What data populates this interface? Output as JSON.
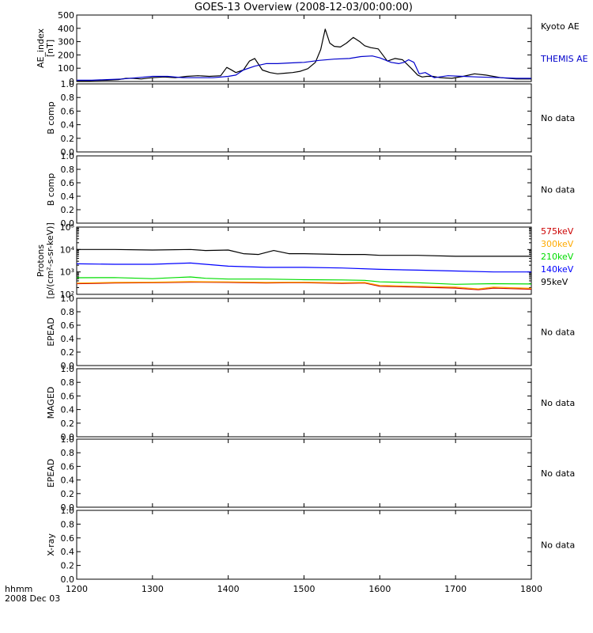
{
  "title": "GOES-13 Overview (2008-12-03/00:00:00)",
  "corner_labels": {
    "time_format": "hhmm",
    "date": "2008 Dec 03"
  },
  "no_data_text": "No data",
  "colors": {
    "kyoto_ae": "#000000",
    "themis_ae": "#0000cc",
    "p575": "#cc0000",
    "p300": "#ffaa00",
    "p210": "#00dd00",
    "p140": "#0000ff",
    "p95": "#000000"
  },
  "chart_data": [
    {
      "type": "line",
      "panel": "ae-index",
      "ylabel": "AE_index [nT]",
      "ylim": [
        0,
        520
      ],
      "yticks": [
        "0",
        "100",
        "200",
        "300",
        "400",
        "500"
      ],
      "xlim": [
        1200,
        1800
      ],
      "series": [
        {
          "name": "Kyoto AE",
          "color": "#000000",
          "x": [
            1200,
            1210,
            1225,
            1240,
            1255,
            1265,
            1275,
            1285,
            1300,
            1315,
            1330,
            1345,
            1360,
            1375,
            1390,
            1398,
            1403,
            1410,
            1420,
            1428,
            1435,
            1445,
            1455,
            1465,
            1475,
            1485,
            1495,
            1505,
            1515,
            1522,
            1528,
            1534,
            1540,
            1548,
            1556,
            1565,
            1574,
            1580,
            1588,
            1598,
            1610,
            1620,
            1630,
            1642,
            1650,
            1656,
            1662,
            1670,
            1680,
            1695,
            1710,
            1725,
            1740,
            1760,
            1780,
            1800
          ],
          "y": [
            5,
            5,
            8,
            10,
            15,
            25,
            25,
            20,
            30,
            35,
            30,
            40,
            45,
            40,
            45,
            110,
            95,
            70,
            90,
            160,
            180,
            90,
            70,
            60,
            65,
            70,
            80,
            100,
            150,
            250,
            410,
            300,
            275,
            270,
            300,
            345,
            310,
            280,
            265,
            255,
            160,
            180,
            170,
            100,
            50,
            35,
            40,
            40,
            30,
            25,
            40,
            60,
            50,
            30,
            20,
            20
          ]
        },
        {
          "name": "THEMIS AE",
          "color": "#0000cc",
          "x": [
            1200,
            1220,
            1240,
            1260,
            1280,
            1300,
            1320,
            1340,
            1360,
            1380,
            1400,
            1410,
            1420,
            1435,
            1450,
            1465,
            1480,
            1500,
            1520,
            1540,
            1560,
            1575,
            1590,
            1600,
            1615,
            1625,
            1632,
            1638,
            1645,
            1652,
            1660,
            1672,
            1690,
            1710,
            1730,
            1760,
            1780,
            1800
          ],
          "y": [
            10,
            10,
            15,
            20,
            30,
            40,
            40,
            30,
            30,
            30,
            40,
            50,
            90,
            120,
            140,
            140,
            145,
            150,
            165,
            175,
            180,
            195,
            200,
            185,
            150,
            140,
            150,
            170,
            150,
            60,
            70,
            30,
            45,
            40,
            35,
            30,
            25,
            25
          ]
        }
      ]
    },
    {
      "type": "line",
      "panel": "b-comp-1",
      "ylabel": "B comp",
      "ylim": [
        0,
        1
      ],
      "yticks": [
        "0.0",
        "0.2",
        "0.4",
        "0.6",
        "0.8",
        "1.0"
      ],
      "status": "No data",
      "series": []
    },
    {
      "type": "line",
      "panel": "b-comp-2",
      "ylabel": "B comp",
      "ylim": [
        0,
        1
      ],
      "yticks": [
        "0.0",
        "0.2",
        "0.4",
        "0.6",
        "0.8",
        "1.0"
      ],
      "status": "No data",
      "series": []
    },
    {
      "type": "line",
      "panel": "protons",
      "ylabel": "Protons [p/(cm²-s-sr-keV)]",
      "yscale": "log",
      "ylim": [
        100,
        100000
      ],
      "yticks": [
        "10²",
        "10³",
        "10⁴",
        "10⁵"
      ],
      "series": [
        {
          "name": "575keV",
          "color": "#cc0000",
          "x": [
            1200,
            1250,
            1300,
            1350,
            1400,
            1450,
            1480,
            1500,
            1550,
            1580,
            1600,
            1650,
            1700,
            1730,
            1750,
            1800
          ],
          "y": [
            300,
            320,
            330,
            350,
            340,
            320,
            330,
            330,
            310,
            320,
            230,
            210,
            190,
            160,
            190,
            170
          ]
        },
        {
          "name": "300keV",
          "color": "#ffaa00",
          "x": [
            1200,
            1250,
            1300,
            1350,
            1400,
            1450,
            1480,
            1500,
            1550,
            1580,
            1600,
            1650,
            1700,
            1730,
            1750,
            1800
          ],
          "y": [
            320,
            340,
            350,
            370,
            360,
            340,
            350,
            350,
            330,
            340,
            250,
            230,
            210,
            175,
            210,
            185
          ]
        },
        {
          "name": "210keV",
          "color": "#00dd00",
          "x": [
            1200,
            1250,
            1300,
            1330,
            1350,
            1370,
            1400,
            1450,
            1500,
            1550,
            1580,
            1600,
            1650,
            1700,
            1750,
            1800
          ],
          "y": [
            550,
            560,
            500,
            560,
            600,
            520,
            480,
            480,
            450,
            440,
            420,
            360,
            330,
            280,
            300,
            290
          ]
        },
        {
          "name": "140keV",
          "color": "#0000ff",
          "x": [
            1200,
            1250,
            1300,
            1350,
            1370,
            1400,
            1450,
            1500,
            1550,
            1600,
            1650,
            1700,
            1750,
            1800
          ],
          "y": [
            2300,
            2200,
            2200,
            2500,
            2200,
            1800,
            1600,
            1600,
            1500,
            1300,
            1200,
            1100,
            1000,
            1000
          ]
        },
        {
          "name": "95keV",
          "color": "#000000",
          "x": [
            1200,
            1250,
            1300,
            1350,
            1370,
            1400,
            1420,
            1440,
            1460,
            1480,
            1500,
            1550,
            1580,
            1600,
            1650,
            1700,
            1750,
            1800
          ],
          "y": [
            10000,
            10000,
            9500,
            10000,
            9000,
            9500,
            6500,
            6000,
            9000,
            6500,
            6500,
            6000,
            6000,
            5500,
            5500,
            5000,
            5000,
            5000
          ]
        }
      ]
    },
    {
      "type": "line",
      "panel": "epead-1",
      "ylabel": "EPEAD",
      "ylim": [
        0,
        1
      ],
      "yticks": [
        "0.0",
        "0.2",
        "0.4",
        "0.6",
        "0.8",
        "1.0"
      ],
      "status": "No data",
      "series": []
    },
    {
      "type": "line",
      "panel": "maged",
      "ylabel": "MAGED",
      "ylim": [
        0,
        1
      ],
      "yticks": [
        "0.0",
        "0.2",
        "0.4",
        "0.6",
        "0.8",
        "1.0"
      ],
      "status": "No data",
      "series": []
    },
    {
      "type": "line",
      "panel": "epead-2",
      "ylabel": "EPEAD",
      "ylim": [
        0,
        1
      ],
      "yticks": [
        "0.0",
        "0.2",
        "0.4",
        "0.6",
        "0.8",
        "1.0"
      ],
      "status": "No data",
      "series": []
    },
    {
      "type": "line",
      "panel": "x-ray",
      "ylabel": "X-ray",
      "ylim": [
        0,
        1
      ],
      "yticks": [
        "0.0",
        "0.2",
        "0.4",
        "0.6",
        "0.8",
        "1.0"
      ],
      "status": "No data",
      "series": []
    }
  ],
  "x_axis": {
    "range": [
      1200,
      1800
    ],
    "ticks": [
      "1200",
      "1300",
      "1400",
      "1500",
      "1600",
      "1700",
      "1800"
    ]
  }
}
